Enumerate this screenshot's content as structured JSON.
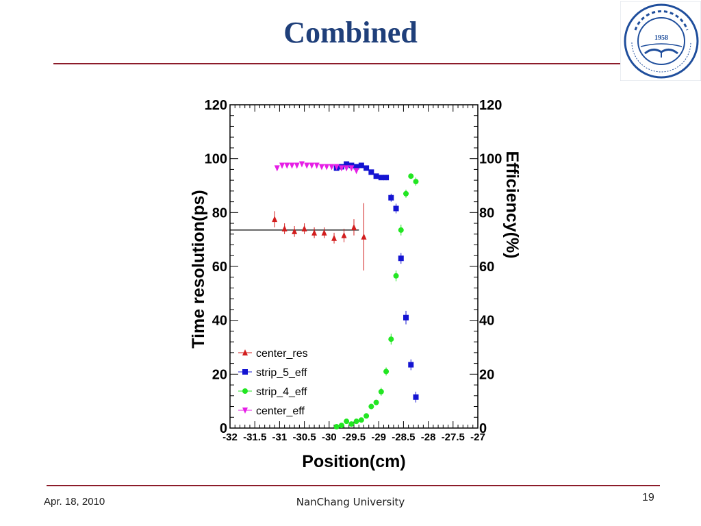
{
  "slide": {
    "title": "Combined",
    "footer_date": "Apr. 18, 2010",
    "footer_center": "NanChang University",
    "page_number": "19"
  },
  "logo": {
    "year": "1958",
    "ring_text": "University of Science and Technology of China",
    "color": "#1f4e9c"
  },
  "colors": {
    "title": "#1f3f7a",
    "rule": "#8c1c2a",
    "center_res": "#d21e1e",
    "strip_5_eff": "#1414d2",
    "strip_4_eff": "#22e622",
    "center_eff": "#e61ee6"
  },
  "chart_data": {
    "type": "scatter",
    "xlabel": "Position(cm)",
    "ylabel": "Time resolution(ps)",
    "y2label": "Efficiency(%)",
    "xlim": [
      -32,
      -27
    ],
    "ylim": [
      0,
      120
    ],
    "y2lim": [
      0,
      120
    ],
    "x_ticks": [
      "-32",
      "-31.5",
      "-31",
      "-30.5",
      "-30",
      "-29.5",
      "-29",
      "-28.5",
      "-28",
      "-27.5",
      "-27"
    ],
    "y_ticks": [
      "0",
      "20",
      "40",
      "60",
      "80",
      "100",
      "120"
    ],
    "y2_ticks": [
      "0",
      "20",
      "40",
      "60",
      "80",
      "100",
      "120"
    ],
    "legend_position": "bottom-left",
    "fit_line": {
      "series": "center_res",
      "x": [
        -32,
        -29.4
      ],
      "y": [
        73.5,
        73.5
      ]
    },
    "series": [
      {
        "name": "center_res",
        "marker": "triangle-up",
        "color": "#d21e1e",
        "points": [
          {
            "x": -31.1,
            "y": 77.5,
            "err": 3
          },
          {
            "x": -30.9,
            "y": 74,
            "err": 2
          },
          {
            "x": -30.7,
            "y": 73,
            "err": 2
          },
          {
            "x": -30.5,
            "y": 74,
            "err": 2
          },
          {
            "x": -30.3,
            "y": 72.5,
            "err": 2
          },
          {
            "x": -30.1,
            "y": 72.5,
            "err": 2
          },
          {
            "x": -29.9,
            "y": 70.5,
            "err": 2
          },
          {
            "x": -29.7,
            "y": 71.5,
            "err": 2.5
          },
          {
            "x": -29.5,
            "y": 74.5,
            "err": 3
          },
          {
            "x": -29.3,
            "y": 71,
            "err": 12.5
          }
        ]
      },
      {
        "name": "strip_5_eff",
        "marker": "square",
        "color": "#1414d2",
        "points": [
          {
            "x": -29.85,
            "y": 96.5,
            "err": 0.5
          },
          {
            "x": -29.75,
            "y": 97,
            "err": 0.5
          },
          {
            "x": -29.65,
            "y": 98,
            "err": 0.5
          },
          {
            "x": -29.55,
            "y": 97.5,
            "err": 0.5
          },
          {
            "x": -29.45,
            "y": 97,
            "err": 0.5
          },
          {
            "x": -29.35,
            "y": 97.5,
            "err": 0.5
          },
          {
            "x": -29.25,
            "y": 96.5,
            "err": 0.5
          },
          {
            "x": -29.15,
            "y": 95,
            "err": 0.5
          },
          {
            "x": -29.05,
            "y": 93.5,
            "err": 0.8
          },
          {
            "x": -28.95,
            "y": 93,
            "err": 0.8
          },
          {
            "x": -28.85,
            "y": 93,
            "err": 1
          },
          {
            "x": -28.75,
            "y": 85.5,
            "err": 1.5
          },
          {
            "x": -28.65,
            "y": 81.5,
            "err": 1.8
          },
          {
            "x": -28.55,
            "y": 63,
            "err": 2
          },
          {
            "x": -28.45,
            "y": 41,
            "err": 2.5
          },
          {
            "x": -28.35,
            "y": 23.5,
            "err": 2
          },
          {
            "x": -28.25,
            "y": 11.5,
            "err": 2
          }
        ]
      },
      {
        "name": "strip_4_eff",
        "marker": "circle",
        "color": "#22e622",
        "points": [
          {
            "x": -29.85,
            "y": 0.5,
            "err": 0.3
          },
          {
            "x": -29.75,
            "y": 1,
            "err": 0.3
          },
          {
            "x": -29.65,
            "y": 2.5,
            "err": 0.5
          },
          {
            "x": -29.55,
            "y": 1.5,
            "err": 0.5
          },
          {
            "x": -29.45,
            "y": 2.5,
            "err": 0.5
          },
          {
            "x": -29.35,
            "y": 3,
            "err": 0.5
          },
          {
            "x": -29.25,
            "y": 4.5,
            "err": 0.8
          },
          {
            "x": -29.15,
            "y": 8,
            "err": 1
          },
          {
            "x": -29.05,
            "y": 9.5,
            "err": 1
          },
          {
            "x": -28.95,
            "y": 13.5,
            "err": 1.5
          },
          {
            "x": -28.85,
            "y": 21,
            "err": 1.5
          },
          {
            "x": -28.75,
            "y": 33,
            "err": 2
          },
          {
            "x": -28.65,
            "y": 56.5,
            "err": 2
          },
          {
            "x": -28.55,
            "y": 73.5,
            "err": 2
          },
          {
            "x": -28.45,
            "y": 87,
            "err": 1.5
          },
          {
            "x": -28.35,
            "y": 93.5,
            "err": 1
          },
          {
            "x": -28.25,
            "y": 91.5,
            "err": 1.5
          }
        ]
      },
      {
        "name": "center_eff",
        "marker": "triangle-down",
        "color": "#e61ee6",
        "points": [
          {
            "x": -31.05,
            "y": 96.5
          },
          {
            "x": -30.95,
            "y": 97.5
          },
          {
            "x": -30.85,
            "y": 97.5
          },
          {
            "x": -30.75,
            "y": 97.5
          },
          {
            "x": -30.65,
            "y": 97.5
          },
          {
            "x": -30.55,
            "y": 98
          },
          {
            "x": -30.45,
            "y": 97.5
          },
          {
            "x": -30.35,
            "y": 97.5
          },
          {
            "x": -30.25,
            "y": 97.5
          },
          {
            "x": -30.15,
            "y": 97
          },
          {
            "x": -30.05,
            "y": 97
          },
          {
            "x": -29.95,
            "y": 97
          },
          {
            "x": -29.85,
            "y": 97
          },
          {
            "x": -29.75,
            "y": 96.5
          },
          {
            "x": -29.65,
            "y": 96.5
          },
          {
            "x": -29.55,
            "y": 96.5
          },
          {
            "x": -29.45,
            "y": 95.5
          }
        ]
      }
    ]
  }
}
